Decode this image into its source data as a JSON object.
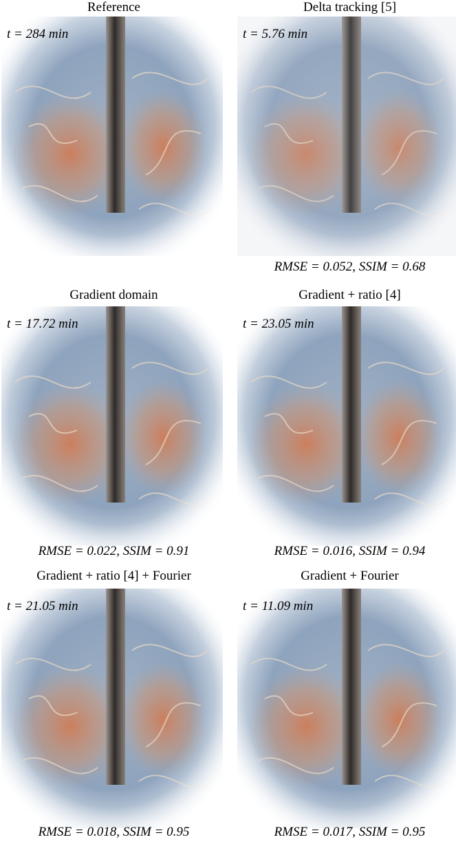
{
  "panels": [
    {
      "title": "Reference",
      "time": "t = 284 min"
    },
    {
      "title": "Delta tracking [5]",
      "time": "t = 5.76 min",
      "metrics": "RMSE = 0.052, SSIM = 0.68"
    },
    {
      "title": "Gradient domain",
      "time": "t = 17.72 min",
      "metrics": "RMSE = 0.022, SSIM = 0.91"
    },
    {
      "title": "Gradient + ratio [4]",
      "time": "t = 23.05 min",
      "metrics": "RMSE = 0.016, SSIM = 0.94"
    },
    {
      "title": "Gradient + ratio [4] + Fourier",
      "time": "t = 21.05 min",
      "metrics": "RMSE = 0.018, SSIM = 0.95"
    },
    {
      "title": "Gradient + Fourier",
      "time": "t = 11.09 min",
      "metrics": "RMSE = 0.017, SSIM = 0.95"
    }
  ]
}
